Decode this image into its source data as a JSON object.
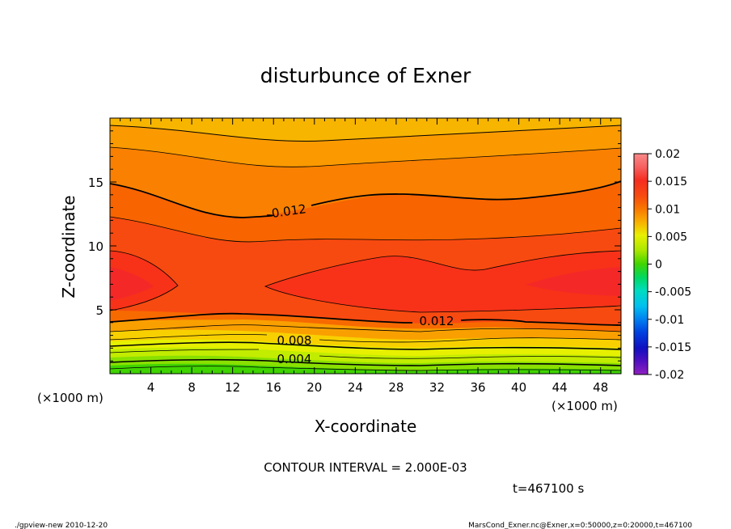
{
  "chart_data": {
    "type": "contour",
    "title": "disturbunce of Exner",
    "xlabel": "X-coordinate",
    "ylabel": "Z-coordinate",
    "x_unit": "(×1000 m)",
    "y_unit": "(×1000 m)",
    "xlim": [
      0,
      50
    ],
    "ylim": [
      0,
      20
    ],
    "x_ticks": [
      "4",
      "8",
      "12",
      "16",
      "20",
      "24",
      "28",
      "32",
      "36",
      "40",
      "44",
      "48"
    ],
    "y_ticks": [
      "5",
      "10",
      "15"
    ],
    "contour_labels": [
      "0.012",
      "0.012",
      "0.008",
      "0.004"
    ],
    "colorbar": {
      "ticks": [
        "0.02",
        "0.015",
        "0.01",
        "0.005",
        "0",
        "-0.005",
        "-0.01",
        "-0.015",
        "-0.02"
      ],
      "range": [
        -0.02,
        0.02
      ]
    },
    "contour_interval_text": "CONTOUR INTERVAL = 2.000E-03",
    "time_text": "t=467100 s",
    "footer_left": "./gpview-new   2010-12-20",
    "footer_right": "MarsCond_Exner.nc@Exner,x=0:50000,z=0:20000,t=467100",
    "grid": false
  }
}
